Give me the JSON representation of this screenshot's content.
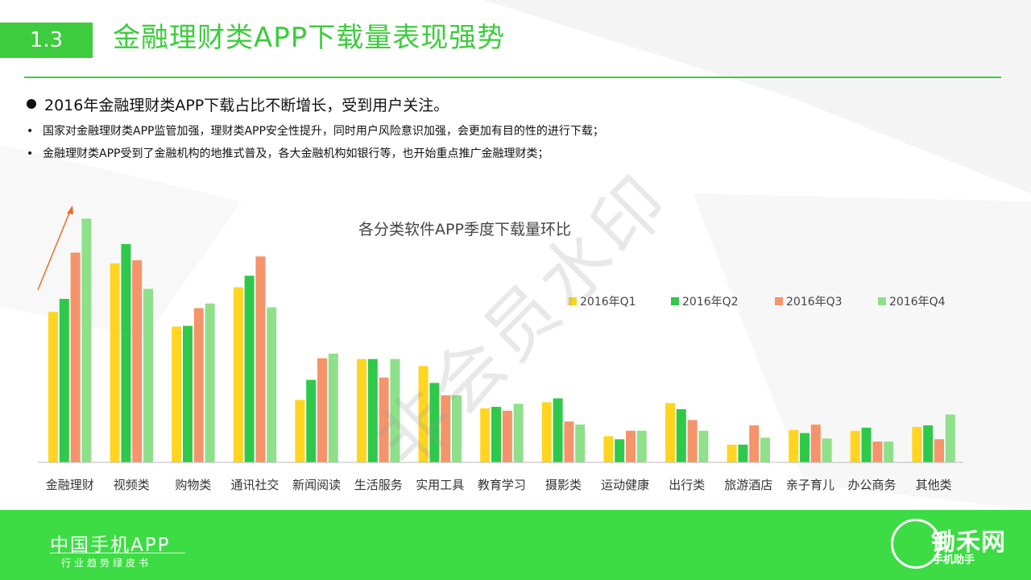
{
  "header": {
    "section_number": "1.3",
    "title": "金融理财类APP下载量表现强势"
  },
  "bullets": {
    "main": "2016年金融理财类APP下载占比不断增长，受到用户关注。",
    "sub": [
      "国家对金融理财类APP监管加强，理财类APP安全性提升，同时用户风险意识加强，会更加有目的性的进行下载；",
      "金融理财类APP受到了金融机构的地推式普及，各大金融机构如银行等，也开始重点推广金融理财类；"
    ]
  },
  "watermark": "非会员水印",
  "chart_data": {
    "type": "bar",
    "title": "各分类软件APP季度下载量环比",
    "categories": [
      "金融理财",
      "视频类",
      "购物类",
      "通讯社交",
      "新闻阅读",
      "生活服务",
      "实用工具",
      "教育学习",
      "摄影类",
      "运动健康",
      "出行类",
      "旅游酒店",
      "亲子育儿",
      "办公商务",
      "其他类"
    ],
    "series": [
      {
        "name": "2016年Q1",
        "color": "#ffd520",
        "values": [
          195,
          258,
          176,
          227,
          81,
          134,
          125,
          70,
          78,
          34,
          77,
          23,
          42,
          41,
          46
        ]
      },
      {
        "name": "2016年Q2",
        "color": "#2ec94a",
        "values": [
          212,
          283,
          177,
          242,
          107,
          134,
          103,
          72,
          83,
          30,
          69,
          23,
          38,
          45,
          48
        ]
      },
      {
        "name": "2016年Q3",
        "color": "#f5946a",
        "values": [
          272,
          262,
          200,
          267,
          135,
          110,
          87,
          67,
          53,
          41,
          55,
          48,
          49,
          27,
          30
        ]
      },
      {
        "name": "2016年Q4",
        "color": "#8ee08a",
        "values": [
          316,
          225,
          206,
          201,
          141,
          134,
          87,
          76,
          49,
          41,
          41,
          32,
          31,
          27,
          62
        ]
      }
    ],
    "ylim": [
      0,
      330
    ],
    "legend_position": "top-right",
    "annotation": "upward arrow over 金融理财"
  },
  "footer": {
    "brand": "中国手机APP",
    "brand_sub": "行业趋势绿皮书",
    "logo_text": "锄禾网",
    "logo_sub": "手机助手"
  },
  "colors": {
    "accent_green": "#3dcc3d",
    "footer_green": "#3ddc44"
  }
}
